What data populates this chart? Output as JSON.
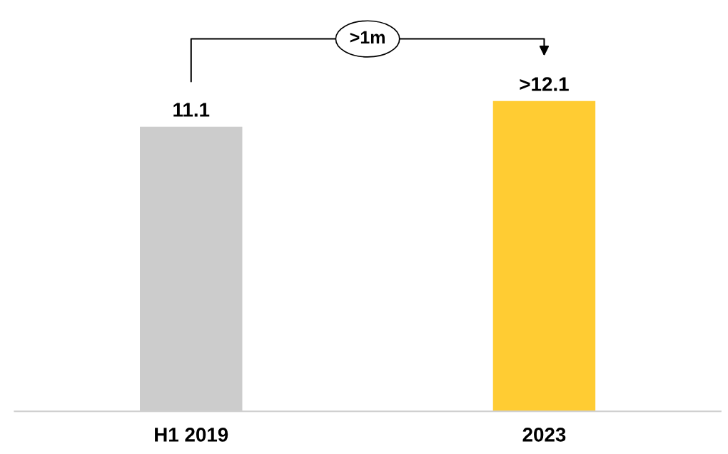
{
  "chart_data": {
    "type": "bar",
    "categories": [
      "H1 2019",
      "2023"
    ],
    "values": [
      11.1,
      12.1
    ],
    "colors": [
      "#cccccc",
      "#ffcc33"
    ],
    "value_labels": [
      "11.1",
      ">12.1"
    ],
    "annotations": [
      ">1m"
    ],
    "grid": false,
    "legend": false,
    "tick_labels": "x"
  }
}
